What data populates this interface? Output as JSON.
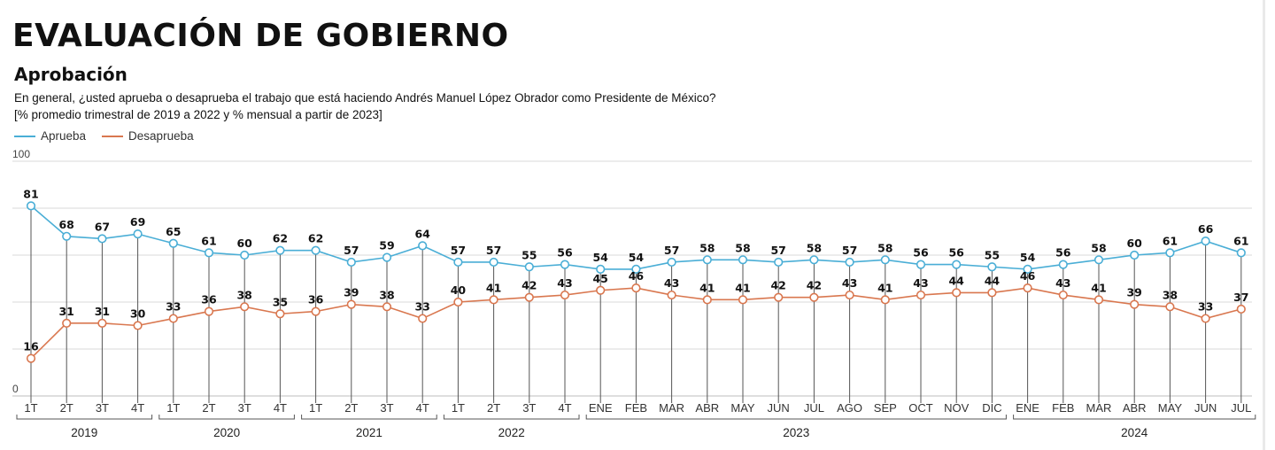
{
  "header": {
    "title": "EVALUACIÓN DE GOBIERNO",
    "subtitle": "Aprobación",
    "question": "En general, ¿usted aprueba o desaprueba el trabajo que está haciendo Andrés Manuel López Obrador como Presidente de México?",
    "note": "[% promedio trimestral de 2019 a 2022 y % mensual a partir de 2023]"
  },
  "colors": {
    "aprueba": "#4aaed6",
    "desaprueba": "#d9774f",
    "grid": "#d9d9d9",
    "axis": "#555555"
  },
  "chart_data": {
    "type": "line",
    "ylim": [
      0,
      100
    ],
    "yticks": [
      0,
      100
    ],
    "grid": true,
    "legend": "top-left",
    "categories": [
      "1T",
      "2T",
      "3T",
      "4T",
      "1T",
      "2T",
      "3T",
      "4T",
      "1T",
      "2T",
      "3T",
      "4T",
      "1T",
      "2T",
      "3T",
      "4T",
      "ENE",
      "FEB",
      "MAR",
      "ABR",
      "MAY",
      "JUN",
      "JUL",
      "AGO",
      "SEP",
      "OCT",
      "NOV",
      "DIC",
      "ENE",
      "FEB",
      "MAR",
      "ABR",
      "MAY",
      "JUN",
      "JUL"
    ],
    "groups": [
      {
        "label": "2019",
        "start": 0,
        "end": 3
      },
      {
        "label": "2020",
        "start": 4,
        "end": 7
      },
      {
        "label": "2021",
        "start": 8,
        "end": 11
      },
      {
        "label": "2022",
        "start": 12,
        "end": 15
      },
      {
        "label": "2023",
        "start": 16,
        "end": 27
      },
      {
        "label": "2024",
        "start": 28,
        "end": 34
      }
    ],
    "series": [
      {
        "name": "Aprueba",
        "color": "#4aaed6",
        "values": [
          81,
          68,
          67,
          69,
          65,
          61,
          60,
          62,
          62,
          57,
          59,
          64,
          57,
          57,
          55,
          56,
          54,
          54,
          57,
          58,
          58,
          57,
          58,
          57,
          58,
          56,
          56,
          55,
          54,
          56,
          58,
          60,
          61,
          66,
          61
        ]
      },
      {
        "name": "Desaprueba",
        "color": "#d9774f",
        "values": [
          16,
          31,
          31,
          30,
          33,
          36,
          38,
          35,
          36,
          39,
          38,
          33,
          40,
          41,
          42,
          43,
          45,
          46,
          43,
          41,
          41,
          42,
          42,
          43,
          41,
          43,
          44,
          44,
          46,
          43,
          41,
          39,
          38,
          33,
          37
        ]
      }
    ]
  }
}
